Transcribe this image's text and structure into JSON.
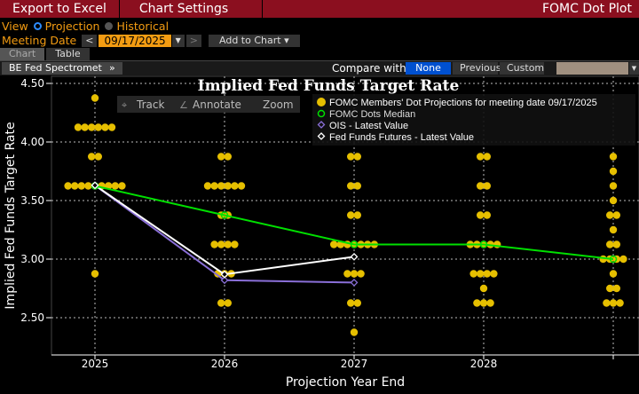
{
  "topbar": {
    "export": "Export to Excel",
    "settings": "Chart Settings",
    "title": "FOMC Dot Plot"
  },
  "view": {
    "label": "View",
    "projection": "Projection",
    "historical": "Historical",
    "selected": "Projection"
  },
  "meeting": {
    "label": "Meeting Date",
    "date": "09/17/2025",
    "add": "Add to Chart"
  },
  "tabs": [
    "Chart",
    "Table"
  ],
  "spectro": "BE Fed Spectrometer",
  "compare": {
    "label": "Compare with",
    "options": [
      "None",
      "Previous",
      "Custom"
    ],
    "selected": "None"
  },
  "toolbar": {
    "track": "Track",
    "annotate": "Annotate",
    "zoom": "Zoom"
  },
  "colors": {
    "dots": "#e6bf00",
    "median": "#00e000",
    "ois": "#8a6fd8",
    "futures": "#ffffff",
    "accent": "#f39c12",
    "brand": "#8b0f1f"
  },
  "chart_data": {
    "type": "scatter",
    "title": "Implied Fed Funds Target Rate",
    "xlabel": "Projection Year End",
    "ylabel": "Implied Fed Funds Target Rate",
    "categories": [
      "2025",
      "2026",
      "2027",
      "2028",
      ""
    ],
    "ylim": [
      2.25,
      4.6
    ],
    "yticks": [
      "2.50",
      "3.00",
      "3.50",
      "4.00",
      "4.50"
    ],
    "grid": true,
    "legend_position": "top-right",
    "dots": [
      {
        "2025": [
          [
            4.375,
            1
          ],
          [
            4.125,
            6
          ],
          [
            3.875,
            2
          ],
          [
            3.625,
            9
          ],
          [
            2.875,
            1
          ]
        ]
      },
      {
        "2026": [
          [
            3.875,
            2
          ],
          [
            3.625,
            6
          ],
          [
            3.375,
            2
          ],
          [
            3.125,
            4
          ],
          [
            2.875,
            3
          ],
          [
            2.625,
            2
          ]
        ]
      },
      {
        "2027": [
          [
            3.875,
            2
          ],
          [
            3.625,
            2
          ],
          [
            3.375,
            2
          ],
          [
            3.125,
            7
          ],
          [
            2.875,
            3
          ],
          [
            2.625,
            2
          ],
          [
            2.375,
            1
          ]
        ]
      },
      {
        "2028": [
          [
            3.875,
            2
          ],
          [
            3.625,
            2
          ],
          [
            3.375,
            2
          ],
          [
            3.125,
            5
          ],
          [
            2.875,
            4
          ],
          [
            2.75,
            1
          ],
          [
            2.625,
            3
          ]
        ]
      },
      {
        "longer_run": [
          [
            3.875,
            1
          ],
          [
            3.75,
            1
          ],
          [
            3.625,
            1
          ],
          [
            3.5,
            1
          ],
          [
            3.375,
            2
          ],
          [
            3.25,
            1
          ],
          [
            3.125,
            2
          ],
          [
            3.0,
            4
          ],
          [
            2.875,
            1
          ],
          [
            2.75,
            2
          ],
          [
            2.625,
            3
          ]
        ]
      }
    ],
    "series": [
      {
        "name": "FOMC Members' Dot Projections for meeting date 09/17/2025",
        "type": "dots"
      },
      {
        "name": "FOMC Dots Median",
        "values": [
          3.625,
          3.375,
          3.125,
          3.125,
          3.0
        ]
      },
      {
        "name": "OIS - Latest Value",
        "values": [
          3.63,
          2.82,
          2.8
        ]
      },
      {
        "name": "Fed Funds Futures - Latest Value",
        "values": [
          3.63,
          2.87,
          3.02
        ]
      }
    ]
  }
}
